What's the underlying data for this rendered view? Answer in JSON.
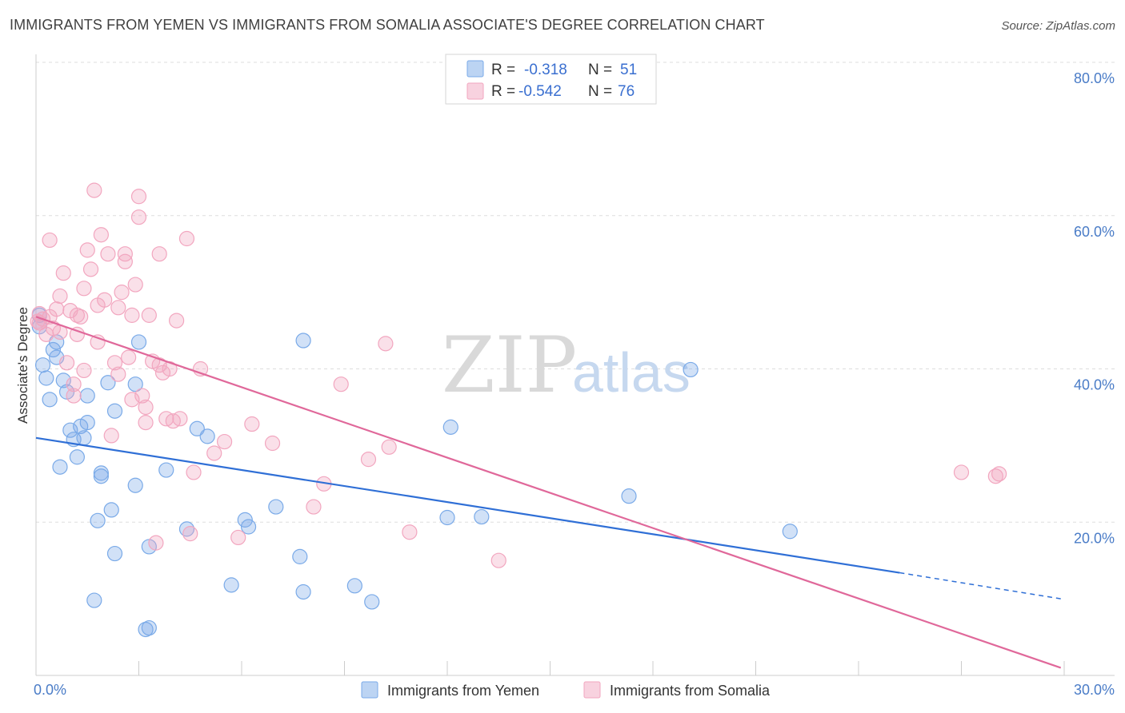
{
  "title": "IMMIGRANTS FROM YEMEN VS IMMIGRANTS FROM SOMALIA ASSOCIATE'S DEGREE CORRELATION CHART",
  "source": "Source: ZipAtlas.com",
  "watermark": {
    "zip": "ZIP",
    "atlas": "atlas"
  },
  "legend": {
    "r_label": "R =",
    "n_label": "N =",
    "rows": [
      {
        "r": "-0.318",
        "n": "51",
        "color": "#7aaae8"
      },
      {
        "r": "-0.542",
        "n": "76",
        "color": "#f2a6bf"
      }
    ]
  },
  "bottom_legend": [
    "Immigrants from Yemen",
    "Immigrants from Somalia"
  ],
  "chart_data": {
    "type": "scatter",
    "title": "IMMIGRANTS FROM YEMEN VS IMMIGRANTS FROM SOMALIA ASSOCIATE'S DEGREE CORRELATION CHART",
    "xlabel": "",
    "ylabel": "Associate's Degree",
    "xlim": [
      0,
      30
    ],
    "ylim": [
      0,
      80
    ],
    "x_ticks_labels": [
      "0.0%",
      "30.0%"
    ],
    "y_tick_values": [
      20,
      40,
      60,
      80
    ],
    "y_tick_labels": [
      "20.0%",
      "40.0%",
      "60.0%",
      "80.0%"
    ],
    "grid": true,
    "legend_position": "top-center",
    "series": [
      {
        "name": "Immigrants from Yemen",
        "color": "#7aaae8",
        "line_color": "#2f6fd6",
        "trend": {
          "x0": 0.0,
          "y0": 31.0,
          "x1": 25.2,
          "y1": 13.4,
          "dash_x1": 29.9,
          "dash_y1": 10.0
        },
        "points": [
          [
            0.1,
            47.0
          ],
          [
            0.1,
            45.5
          ],
          [
            0.2,
            40.5
          ],
          [
            0.3,
            38.8
          ],
          [
            0.4,
            36.0
          ],
          [
            0.5,
            42.5
          ],
          [
            0.6,
            41.5
          ],
          [
            0.6,
            43.5
          ],
          [
            0.7,
            27.2
          ],
          [
            0.8,
            38.5
          ],
          [
            0.9,
            37.0
          ],
          [
            1.0,
            32.0
          ],
          [
            1.1,
            30.8
          ],
          [
            1.2,
            28.5
          ],
          [
            1.3,
            32.5
          ],
          [
            1.4,
            31.0
          ],
          [
            1.5,
            33.0
          ],
          [
            1.5,
            36.5
          ],
          [
            1.7,
            9.8
          ],
          [
            1.8,
            20.2
          ],
          [
            1.9,
            26.4
          ],
          [
            1.9,
            26.0
          ],
          [
            2.1,
            38.2
          ],
          [
            2.2,
            21.6
          ],
          [
            2.3,
            34.5
          ],
          [
            2.3,
            15.9
          ],
          [
            2.9,
            38.0
          ],
          [
            2.9,
            24.8
          ],
          [
            3.0,
            43.5
          ],
          [
            3.2,
            6.0
          ],
          [
            3.3,
            6.2
          ],
          [
            3.3,
            16.8
          ],
          [
            3.8,
            26.8
          ],
          [
            4.4,
            19.1
          ],
          [
            4.7,
            32.2
          ],
          [
            5.0,
            31.2
          ],
          [
            5.7,
            11.8
          ],
          [
            6.1,
            20.3
          ],
          [
            6.2,
            19.4
          ],
          [
            7.0,
            22.0
          ],
          [
            7.7,
            15.5
          ],
          [
            7.8,
            10.9
          ],
          [
            7.8,
            43.7
          ],
          [
            9.3,
            11.7
          ],
          [
            9.8,
            9.6
          ],
          [
            12.0,
            20.6
          ],
          [
            12.1,
            32.4
          ],
          [
            13.0,
            20.7
          ],
          [
            17.3,
            23.4
          ],
          [
            19.1,
            39.9
          ],
          [
            22.0,
            18.8
          ]
        ]
      },
      {
        "name": "Immigrants from Somalia",
        "color": "#f2a6bf",
        "line_color": "#e0689a",
        "trend": {
          "x0": 0.0,
          "y0": 46.8,
          "x1": 29.9,
          "y1": 1.0
        },
        "points": [
          [
            0.1,
            46.0
          ],
          [
            0.1,
            47.2
          ],
          [
            0.2,
            46.5
          ],
          [
            0.3,
            44.5
          ],
          [
            0.4,
            46.8
          ],
          [
            0.4,
            56.8
          ],
          [
            0.5,
            45.3
          ],
          [
            0.6,
            47.8
          ],
          [
            0.7,
            49.5
          ],
          [
            0.7,
            44.8
          ],
          [
            0.8,
            52.5
          ],
          [
            0.9,
            40.8
          ],
          [
            1.0,
            47.6
          ],
          [
            1.1,
            38.0
          ],
          [
            1.1,
            36.5
          ],
          [
            1.2,
            47.0
          ],
          [
            1.2,
            44.5
          ],
          [
            1.3,
            46.8
          ],
          [
            1.4,
            39.8
          ],
          [
            1.4,
            50.5
          ],
          [
            1.5,
            55.5
          ],
          [
            1.6,
            53.0
          ],
          [
            1.7,
            63.3
          ],
          [
            1.8,
            48.3
          ],
          [
            1.8,
            43.5
          ],
          [
            1.9,
            57.5
          ],
          [
            2.0,
            49.0
          ],
          [
            2.1,
            55.0
          ],
          [
            2.2,
            31.3
          ],
          [
            2.3,
            40.8
          ],
          [
            2.4,
            48.0
          ],
          [
            2.4,
            39.3
          ],
          [
            2.5,
            50.0
          ],
          [
            2.6,
            54.0
          ],
          [
            2.6,
            55.0
          ],
          [
            2.7,
            41.5
          ],
          [
            2.8,
            47.0
          ],
          [
            2.8,
            36.0
          ],
          [
            2.9,
            51.0
          ],
          [
            3.0,
            62.5
          ],
          [
            3.0,
            59.8
          ],
          [
            3.1,
            36.5
          ],
          [
            3.2,
            35.0
          ],
          [
            3.2,
            33.0
          ],
          [
            3.3,
            47.0
          ],
          [
            3.4,
            41.0
          ],
          [
            3.5,
            17.3
          ],
          [
            3.6,
            40.5
          ],
          [
            3.6,
            55.0
          ],
          [
            3.7,
            39.5
          ],
          [
            3.8,
            33.5
          ],
          [
            3.9,
            40.0
          ],
          [
            4.0,
            33.2
          ],
          [
            4.1,
            46.3
          ],
          [
            4.2,
            33.5
          ],
          [
            4.4,
            57.0
          ],
          [
            4.5,
            18.5
          ],
          [
            4.6,
            26.5
          ],
          [
            4.8,
            40.0
          ],
          [
            5.2,
            29.0
          ],
          [
            5.5,
            30.5
          ],
          [
            5.9,
            18.0
          ],
          [
            6.3,
            32.8
          ],
          [
            6.9,
            30.3
          ],
          [
            8.1,
            22.0
          ],
          [
            8.4,
            25.0
          ],
          [
            8.9,
            38.0
          ],
          [
            9.7,
            28.2
          ],
          [
            10.2,
            43.3
          ],
          [
            10.3,
            29.8
          ],
          [
            10.9,
            18.7
          ],
          [
            13.5,
            15.0
          ],
          [
            27.0,
            26.5
          ],
          [
            28.0,
            26.0
          ],
          [
            28.1,
            26.3
          ],
          [
            0.05,
            46.2
          ]
        ]
      }
    ]
  }
}
